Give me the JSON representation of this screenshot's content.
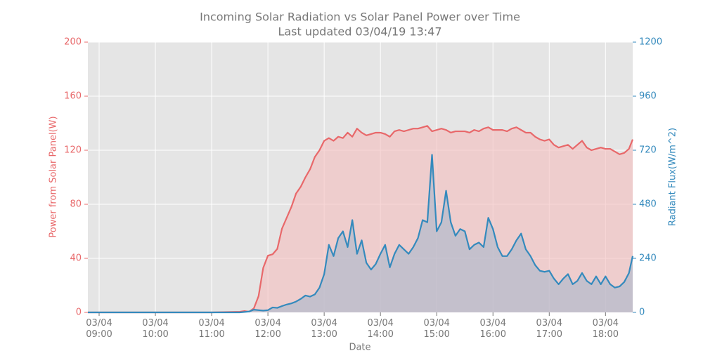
{
  "chart_data": {
    "type": "line",
    "title": "Incoming Solar Radiation vs Solar Panel Power over Time",
    "subtitle": "Last updated 03/04/19 13:47",
    "xlabel": "Date",
    "ylabel": "Power from Solar Panel(W)",
    "y2label": "Radiant Flux(W/m^2)",
    "area": true,
    "grid": true,
    "xlim": [
      "08:48",
      "18:29"
    ],
    "ylim": [
      0,
      200
    ],
    "y2lim": [
      0,
      1200
    ],
    "yticks": [
      0,
      40,
      80,
      120,
      160,
      200
    ],
    "y2ticks": [
      0,
      240,
      480,
      720,
      960,
      1200
    ],
    "xticks": [
      {
        "value": "09:00",
        "label": "03/04\n09:00"
      },
      {
        "value": "10:00",
        "label": "03/04\n10:00"
      },
      {
        "value": "11:00",
        "label": "03/04\n11:00"
      },
      {
        "value": "12:00",
        "label": "03/04\n12:00"
      },
      {
        "value": "13:00",
        "label": "03/04\n13:00"
      },
      {
        "value": "14:00",
        "label": "03/04\n14:00"
      },
      {
        "value": "15:00",
        "label": "03/04\n15:00"
      },
      {
        "value": "16:00",
        "label": "03/04\n16:00"
      },
      {
        "value": "17:00",
        "label": "03/04\n17:00"
      },
      {
        "value": "18:00",
        "label": "03/04\n18:00"
      }
    ],
    "x": [
      "08:48",
      "11:00",
      "11:30",
      "11:35",
      "11:40",
      "11:45",
      "11:50",
      "11:55",
      "12:00",
      "12:05",
      "12:10",
      "12:15",
      "12:20",
      "12:25",
      "12:30",
      "12:35",
      "12:40",
      "12:45",
      "12:50",
      "12:55",
      "13:00",
      "13:05",
      "13:10",
      "13:15",
      "13:20",
      "13:25",
      "13:30",
      "13:35",
      "13:40",
      "13:45",
      "13:50",
      "13:55",
      "14:00",
      "14:05",
      "14:10",
      "14:15",
      "14:20",
      "14:25",
      "14:30",
      "14:35",
      "14:40",
      "14:45",
      "14:50",
      "14:55",
      "15:00",
      "15:05",
      "15:10",
      "15:15",
      "15:20",
      "15:25",
      "15:30",
      "15:35",
      "15:40",
      "15:45",
      "15:50",
      "15:55",
      "16:00",
      "16:05",
      "16:10",
      "16:15",
      "16:20",
      "16:25",
      "16:30",
      "16:35",
      "16:40",
      "16:45",
      "16:50",
      "16:55",
      "17:00",
      "17:05",
      "17:10",
      "17:15",
      "17:20",
      "17:25",
      "17:30",
      "17:35",
      "17:40",
      "17:45",
      "17:50",
      "17:55",
      "18:00",
      "18:05",
      "18:10",
      "18:15",
      "18:20",
      "18:25",
      "18:29"
    ],
    "series": [
      {
        "name": "Power from Solar Panel(W)",
        "color": "#e8686a",
        "fill": "#f4bcbc",
        "values": [
          0,
          0,
          0.5,
          1,
          0.5,
          3,
          12,
          33,
          42,
          43,
          47,
          62,
          70,
          78,
          88,
          93,
          100,
          106,
          115,
          120,
          127,
          129,
          127,
          130,
          129,
          133,
          130,
          136,
          133,
          131,
          132,
          133,
          133,
          132,
          130,
          134,
          135,
          134,
          135,
          136,
          136,
          137,
          138,
          134,
          135,
          136,
          135,
          133,
          134,
          134,
          134,
          133,
          135,
          134,
          136,
          137,
          135,
          135,
          135,
          134,
          136,
          137,
          135,
          133,
          133,
          130,
          128,
          127,
          128,
          124,
          122,
          123,
          124,
          121,
          124,
          127,
          122,
          120,
          121,
          122,
          121,
          121,
          119,
          117,
          118,
          121,
          128
        ]
      },
      {
        "name": "Radiant Flux(W/m^2)",
        "color": "#348abd",
        "fill": "#a9b7cc",
        "axis": "y2",
        "values": [
          0,
          0,
          0,
          2,
          4,
          12,
          10,
          8,
          10,
          22,
          20,
          28,
          35,
          40,
          48,
          60,
          75,
          70,
          80,
          110,
          170,
          300,
          250,
          330,
          360,
          290,
          410,
          260,
          320,
          220,
          190,
          215,
          260,
          300,
          200,
          260,
          300,
          280,
          260,
          290,
          330,
          410,
          400,
          700,
          360,
          400,
          540,
          400,
          340,
          370,
          360,
          280,
          300,
          310,
          290,
          420,
          370,
          290,
          250,
          250,
          280,
          320,
          350,
          280,
          250,
          210,
          185,
          180,
          185,
          150,
          125,
          150,
          170,
          125,
          140,
          175,
          140,
          125,
          160,
          125,
          160,
          125,
          110,
          115,
          135,
          175,
          250
        ]
      }
    ]
  }
}
